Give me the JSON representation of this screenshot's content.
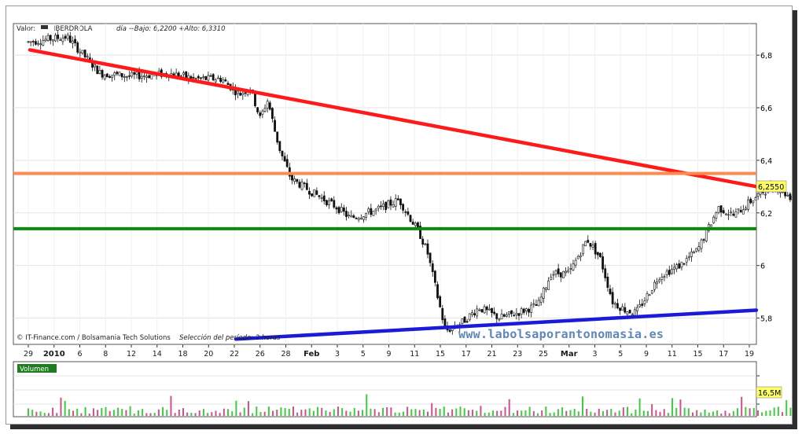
{
  "header": {
    "label_valor": "Valor:",
    "ticker": "IBERDROLA",
    "stats": "día +Bajo: 6,2200 +Alto: 6,3310"
  },
  "footer": {
    "source": "© IT-Finance.com / Bolsamania Tech Solutions",
    "period": "Selección del período: 2 horas"
  },
  "watermark": "www.labolsaporantonomasia.es",
  "volume_panel": {
    "label": "Volumen",
    "last_value_label": "16,5M"
  },
  "price_panel": {
    "last_value_label": "6,2550"
  },
  "colors": {
    "resistance_red": "#ff1a1a",
    "orange_level": "#ff8a50",
    "green_level": "#0b8a0b",
    "support_blue": "#1a1ad8",
    "volume_up": "#3ccc3c",
    "volume_down": "#d0508a",
    "value_box": "#ffff66"
  },
  "chart_data": [
    {
      "type": "candlestick",
      "title": "IBERDROLA",
      "x_tick_labels": [
        "29",
        "2010",
        "6",
        "8",
        "12",
        "14",
        "18",
        "20",
        "22",
        "26",
        "28",
        "Feb",
        "3",
        "5",
        "9",
        "11",
        "15",
        "17",
        "21",
        "23",
        "25",
        "Mar",
        "3",
        "5",
        "9",
        "11",
        "15",
        "17",
        "19"
      ],
      "y_tick_labels": [
        "6,8",
        "6,6",
        "6,4",
        "6,2",
        "6",
        "5,8"
      ],
      "ylim": [
        5.7,
        6.92
      ],
      "last_value": 6.255,
      "lines": [
        {
          "name": "resistance",
          "color": "red",
          "from": {
            "x": "29",
            "y": 6.82
          },
          "to": {
            "x": "19",
            "y": 6.3
          }
        },
        {
          "name": "horizontal",
          "color": "orange",
          "y": 6.35
        },
        {
          "name": "horizontal",
          "color": "green",
          "y": 6.14
        },
        {
          "name": "support",
          "color": "blue",
          "from": {
            "x": "22",
            "y": 5.72
          },
          "to": {
            "x": "19",
            "y": 5.83
          }
        }
      ],
      "price_path": [
        [
          0,
          6.85
        ],
        [
          1.5,
          6.87
        ],
        [
          2.8,
          6.73
        ],
        [
          4,
          6.72
        ],
        [
          5.5,
          6.73
        ],
        [
          6.5,
          6.71
        ],
        [
          7.5,
          6.71
        ],
        [
          8.2,
          6.65
        ],
        [
          8.6,
          6.68
        ],
        [
          9.0,
          6.56
        ],
        [
          9.3,
          6.63
        ],
        [
          9.6,
          6.5
        ],
        [
          9.8,
          6.43
        ],
        [
          10.2,
          6.33
        ],
        [
          11,
          6.28
        ],
        [
          12,
          6.22
        ],
        [
          12.5,
          6.18
        ],
        [
          13.5,
          6.21
        ],
        [
          14.4,
          6.25
        ],
        [
          15.2,
          6.12
        ],
        [
          15.5,
          6.05
        ],
        [
          16.2,
          5.75
        ],
        [
          16.8,
          5.78
        ],
        [
          17.5,
          5.84
        ],
        [
          18.3,
          5.8
        ],
        [
          19,
          5.82
        ],
        [
          19.8,
          5.85
        ],
        [
          20.3,
          5.97
        ],
        [
          21.0,
          5.97
        ],
        [
          21.7,
          6.1
        ],
        [
          22.2,
          6.03
        ],
        [
          22.7,
          5.86
        ],
        [
          23.2,
          5.83
        ],
        [
          23.6,
          5.82
        ],
        [
          24.0,
          5.88
        ],
        [
          24.5,
          5.96
        ],
        [
          25.3,
          6.0
        ],
        [
          26.0,
          6.06
        ],
        [
          26.8,
          6.22
        ],
        [
          27.4,
          6.19
        ],
        [
          28.0,
          6.24
        ],
        [
          28.5,
          6.28
        ],
        [
          29.0,
          6.3
        ],
        [
          29.6,
          6.26
        ],
        [
          30.4,
          6.33
        ],
        [
          31.0,
          6.28
        ],
        [
          31.5,
          6.23
        ]
      ]
    },
    {
      "type": "bar",
      "title": "Volumen",
      "last_value": "16,5M"
    }
  ]
}
